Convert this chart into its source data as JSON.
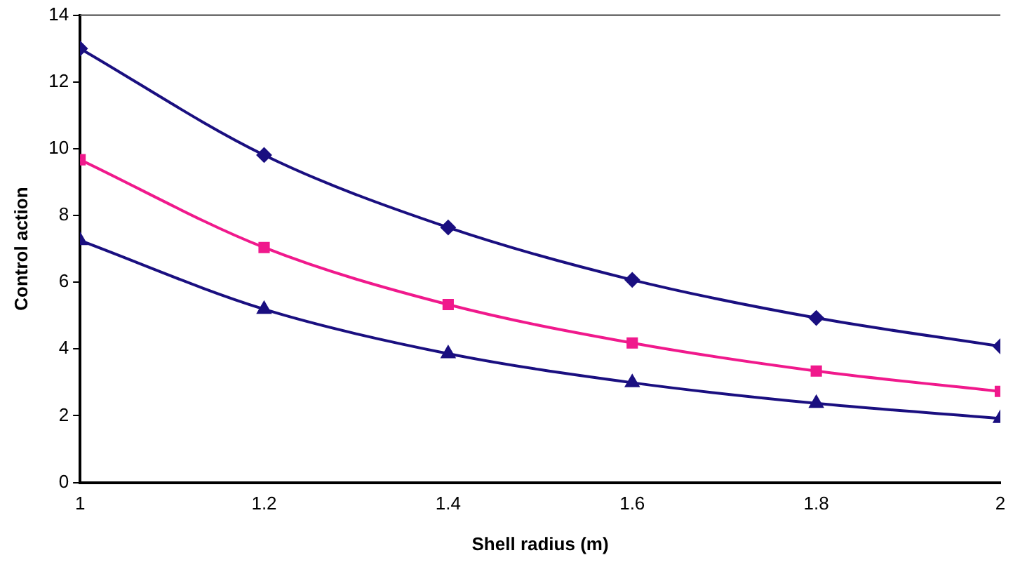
{
  "chart_data": {
    "type": "line",
    "xlabel": "Shell radius (m)",
    "ylabel": "Control action",
    "x": [
      1,
      1.2,
      1.4,
      1.6,
      1.8,
      2
    ],
    "series": [
      {
        "color": "#1a0f80",
        "marker": "diamond",
        "values": [
          13.0,
          9.81,
          7.64,
          6.07,
          4.93,
          4.08
        ]
      },
      {
        "color": "#f0198c",
        "marker": "square",
        "values": [
          9.67,
          7.04,
          5.33,
          4.18,
          3.34,
          2.73
        ]
      },
      {
        "color": "#1a0f80",
        "marker": "triangle",
        "values": [
          7.25,
          5.19,
          3.86,
          2.99,
          2.37,
          1.92
        ]
      }
    ],
    "xlim": [
      1,
      2
    ],
    "xticks": [
      1,
      1.2,
      1.4,
      1.6,
      1.8,
      2
    ],
    "ylim": [
      0,
      14
    ],
    "yticks": [
      0,
      2,
      4,
      6,
      8,
      10,
      12,
      14
    ],
    "grid": false,
    "legend": false,
    "line_style": "solid"
  }
}
